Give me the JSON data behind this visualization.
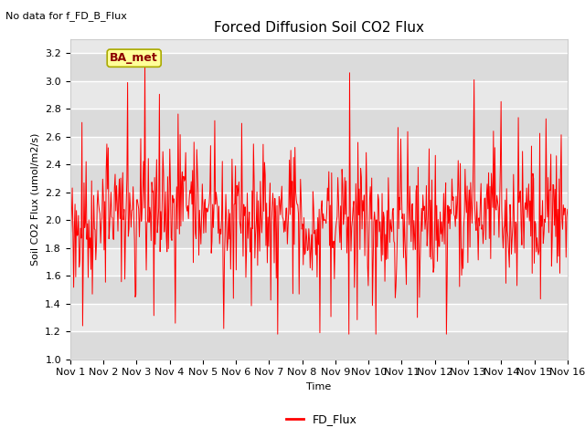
{
  "title": "Forced Diffusion Soil CO2 Flux",
  "ylabel": "Soil CO2 Flux (umol/m2/s)",
  "xlabel": "Time",
  "no_data_text": "No data for f_FD_B_Flux",
  "legend_label": "FD_Flux",
  "legend_color": "#ff0000",
  "line_color": "#ff0000",
  "plot_bg_color": "#e8e8e8",
  "band_color": "#d0d0d0",
  "ylim": [
    1.0,
    3.3
  ],
  "yticks": [
    1.0,
    1.2,
    1.4,
    1.6,
    1.8,
    2.0,
    2.2,
    2.4,
    2.6,
    2.8,
    3.0,
    3.2
  ],
  "x_tick_labels": [
    "Nov 1",
    "Nov 2",
    "Nov 3",
    "Nov 4",
    "Nov 5",
    "Nov 6",
    "Nov 7",
    "Nov 8",
    "Nov 9",
    "Nov 10",
    "Nov 11",
    "Nov 12",
    "Nov 13",
    "Nov 14",
    "Nov 15",
    "Nov 16"
  ],
  "n_days": 15,
  "label_box_text": "BA_met",
  "label_box_facecolor": "#ffff99",
  "label_box_edgecolor": "#aaaa00",
  "title_fontsize": 11,
  "axis_label_fontsize": 8,
  "tick_fontsize": 8,
  "no_data_fontsize": 8,
  "legend_fontsize": 9,
  "seed": 42
}
